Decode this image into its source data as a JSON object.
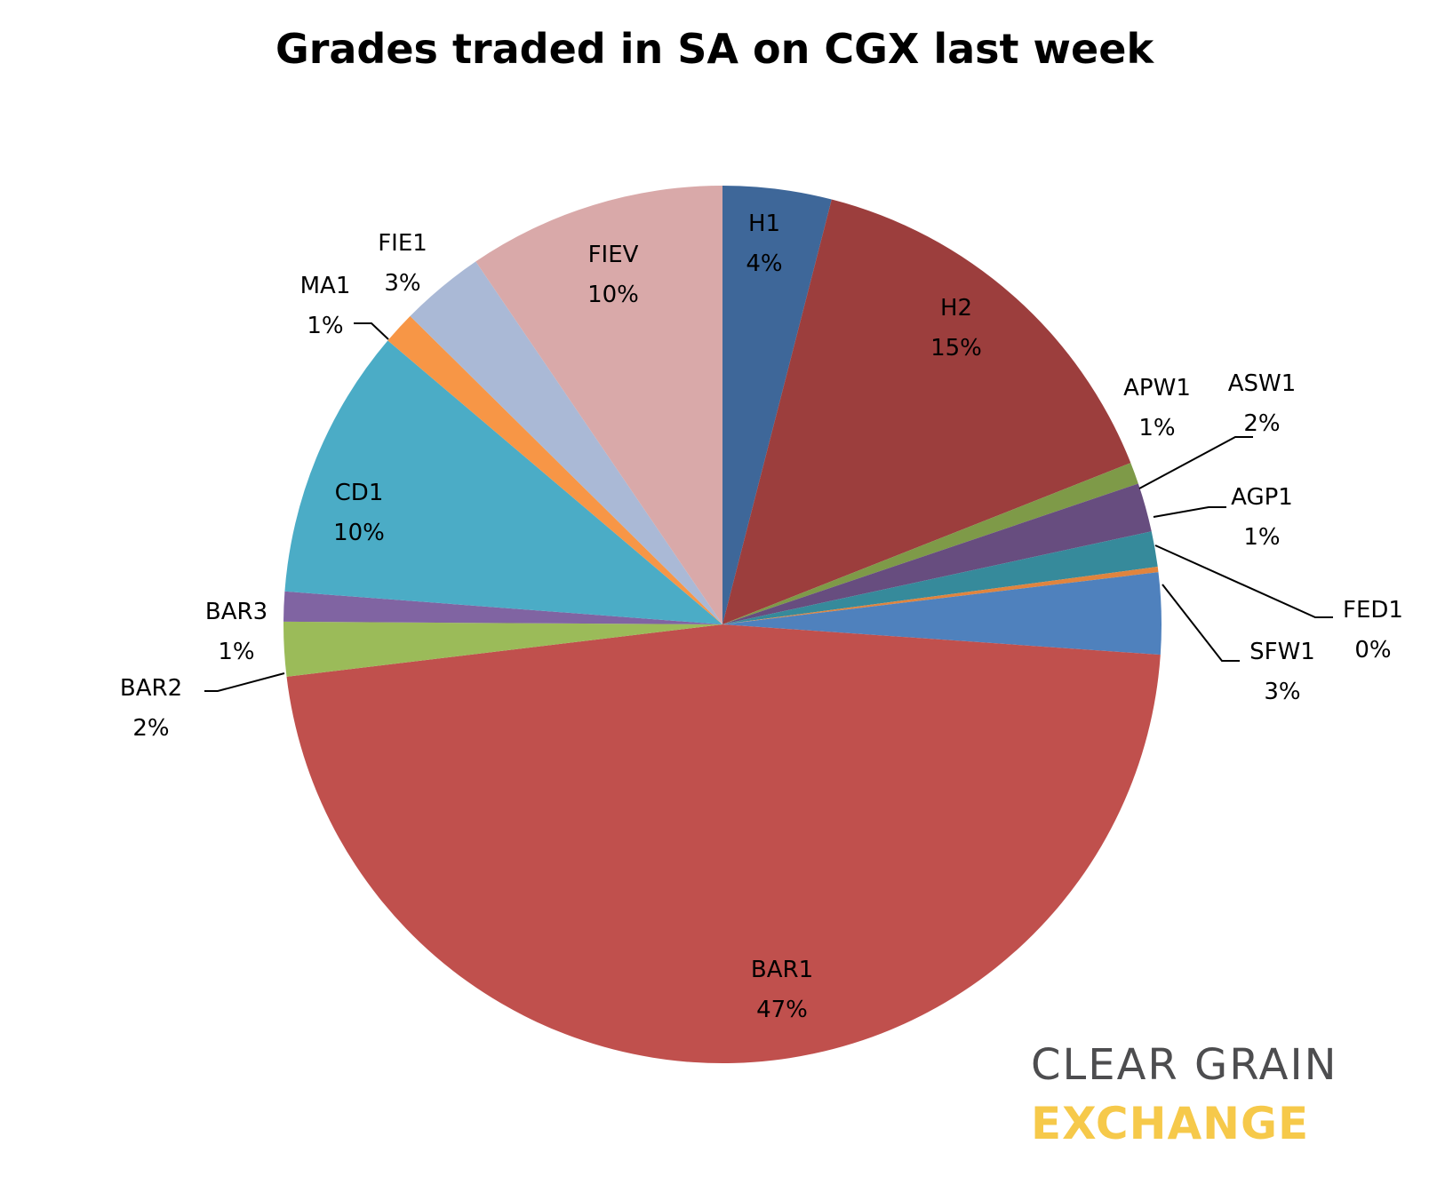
{
  "chart_data": {
    "type": "pie",
    "title": "Grades traded in SA on CGX last week",
    "start_angle_deg": 0,
    "direction": "clockwise",
    "slices": [
      {
        "label": "H1",
        "value": 4,
        "percent_label": "4%",
        "color": "#3E6799"
      },
      {
        "label": "H2",
        "value": 15,
        "percent_label": "15%",
        "color": "#9C3E3D"
      },
      {
        "label": "APW1",
        "value": 0.8,
        "percent_label": "1%",
        "color": "#7E9A48"
      },
      {
        "label": "ASW1",
        "value": 1.8,
        "percent_label": "2%",
        "color": "#674D7F"
      },
      {
        "label": "AGP1",
        "value": 1.3,
        "percent_label": "1%",
        "color": "#368A9B"
      },
      {
        "label": "FED1",
        "value": 0.2,
        "percent_label": "0%",
        "color": "#E0843E"
      },
      {
        "label": "SFW1",
        "value": 3,
        "percent_label": "3%",
        "color": "#4F81BD"
      },
      {
        "label": "BAR1",
        "value": 47,
        "percent_label": "47%",
        "color": "#C0504D"
      },
      {
        "label": "BAR2",
        "value": 2,
        "percent_label": "2%",
        "color": "#9BBB59"
      },
      {
        "label": "BAR3",
        "value": 1.1,
        "percent_label": "1%",
        "color": "#8064A2"
      },
      {
        "label": "CD1",
        "value": 10,
        "percent_label": "10%",
        "color": "#4BACC6"
      },
      {
        "label": "MA1",
        "value": 1.2,
        "percent_label": "1%",
        "color": "#F79646"
      },
      {
        "label": "FIE1",
        "value": 3.1,
        "percent_label": "3%",
        "color": "#AAB9D6"
      },
      {
        "label": "FIEV",
        "value": 9.5,
        "percent_label": "10%",
        "color": "#D9A9A9"
      }
    ]
  },
  "logo": {
    "line1": "CLEAR GRAIN",
    "line2": "EXCHANGE",
    "text_color": "#4d4d4f",
    "accent_color": "#f6c94a"
  }
}
